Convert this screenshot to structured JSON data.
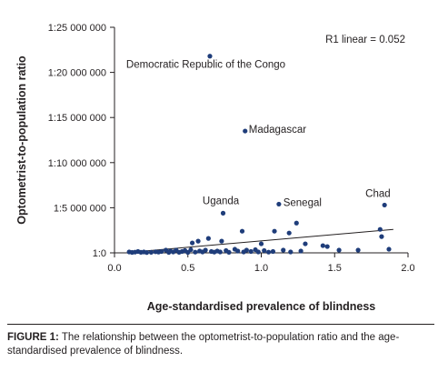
{
  "caption": {
    "label": "FIGURE 1:",
    "text": " The relationship between the optometrist-to-population ratio and the age-standardised prevalence of blindness."
  },
  "chart_data": {
    "type": "scatter",
    "xlabel": "Age-standardised prevalence of blindness",
    "ylabel": "Optometrist-to-population ratio",
    "xlim": [
      0.0,
      2.0
    ],
    "ylim": [
      0,
      25000000
    ],
    "x_ticks": [
      {
        "value": 0.0,
        "label": "0.0"
      },
      {
        "value": 0.5,
        "label": "0.5"
      },
      {
        "value": 1.0,
        "label": "1.0"
      },
      {
        "value": 1.5,
        "label": "1.5"
      },
      {
        "value": 2.0,
        "label": "2.0"
      }
    ],
    "y_ticks": [
      {
        "value": 0,
        "label": "1:0"
      },
      {
        "value": 5000000,
        "label": "1:5 000 000"
      },
      {
        "value": 10000000,
        "label": "1:10 000 000"
      },
      {
        "value": 15000000,
        "label": "1:15 000 000"
      },
      {
        "value": 20000000,
        "label": "1:20 000 000"
      },
      {
        "value": 25000000,
        "label": "1:25 000 000"
      }
    ],
    "r_label": "R1 linear = 0.052",
    "marker_color": "#1f3d7a",
    "trendline": {
      "x": [
        0.1,
        1.9
      ],
      "y": [
        50000,
        2600000
      ]
    },
    "points": [
      {
        "x": 0.65,
        "y": 21800000
      },
      {
        "x": 0.89,
        "y": 13500000
      },
      {
        "x": 0.74,
        "y": 4400000
      },
      {
        "x": 1.12,
        "y": 5400000
      },
      {
        "x": 1.84,
        "y": 5300000
      },
      {
        "x": 1.24,
        "y": 3300000
      },
      {
        "x": 0.87,
        "y": 2400000
      },
      {
        "x": 1.19,
        "y": 2200000
      },
      {
        "x": 1.09,
        "y": 2400000
      },
      {
        "x": 1.81,
        "y": 2600000
      },
      {
        "x": 1.82,
        "y": 1800000
      },
      {
        "x": 0.53,
        "y": 1100000
      },
      {
        "x": 0.64,
        "y": 1600000
      },
      {
        "x": 0.57,
        "y": 1300000
      },
      {
        "x": 0.73,
        "y": 1300000
      },
      {
        "x": 1.0,
        "y": 1000000
      },
      {
        "x": 1.3,
        "y": 1000000
      },
      {
        "x": 1.42,
        "y": 800000
      },
      {
        "x": 1.45,
        "y": 700000
      },
      {
        "x": 1.66,
        "y": 300000
      },
      {
        "x": 1.53,
        "y": 300000
      },
      {
        "x": 1.87,
        "y": 400000
      },
      {
        "x": 0.1,
        "y": 100000
      },
      {
        "x": 0.12,
        "y": 50000
      },
      {
        "x": 0.14,
        "y": 80000
      },
      {
        "x": 0.16,
        "y": 150000
      },
      {
        "x": 0.18,
        "y": 60000
      },
      {
        "x": 0.2,
        "y": 100000
      },
      {
        "x": 0.22,
        "y": 40000
      },
      {
        "x": 0.25,
        "y": 60000
      },
      {
        "x": 0.28,
        "y": 120000
      },
      {
        "x": 0.3,
        "y": 80000
      },
      {
        "x": 0.32,
        "y": 150000
      },
      {
        "x": 0.35,
        "y": 300000
      },
      {
        "x": 0.37,
        "y": 50000
      },
      {
        "x": 0.38,
        "y": 200000
      },
      {
        "x": 0.4,
        "y": 100000
      },
      {
        "x": 0.42,
        "y": 300000
      },
      {
        "x": 0.44,
        "y": 60000
      },
      {
        "x": 0.46,
        "y": 150000
      },
      {
        "x": 0.48,
        "y": 250000
      },
      {
        "x": 0.5,
        "y": 50000
      },
      {
        "x": 0.52,
        "y": 350000
      },
      {
        "x": 0.55,
        "y": 80000
      },
      {
        "x": 0.58,
        "y": 200000
      },
      {
        "x": 0.6,
        "y": 100000
      },
      {
        "x": 0.62,
        "y": 300000
      },
      {
        "x": 0.66,
        "y": 150000
      },
      {
        "x": 0.68,
        "y": 80000
      },
      {
        "x": 0.7,
        "y": 200000
      },
      {
        "x": 0.72,
        "y": 100000
      },
      {
        "x": 0.76,
        "y": 250000
      },
      {
        "x": 0.78,
        "y": 60000
      },
      {
        "x": 0.82,
        "y": 400000
      },
      {
        "x": 0.84,
        "y": 200000
      },
      {
        "x": 0.88,
        "y": 100000
      },
      {
        "x": 0.9,
        "y": 300000
      },
      {
        "x": 0.93,
        "y": 150000
      },
      {
        "x": 0.96,
        "y": 350000
      },
      {
        "x": 0.98,
        "y": 100000
      },
      {
        "x": 1.02,
        "y": 250000
      },
      {
        "x": 1.05,
        "y": 80000
      },
      {
        "x": 1.08,
        "y": 150000
      },
      {
        "x": 1.15,
        "y": 300000
      },
      {
        "x": 1.2,
        "y": 100000
      },
      {
        "x": 1.27,
        "y": 200000
      }
    ],
    "annotations": [
      {
        "text": "Democratic Republic of the Congo",
        "x": 0.08,
        "y": 20500000
      },
      {
        "text": "Madagascar",
        "x": 0.915,
        "y": 13300000
      },
      {
        "text": "Uganda",
        "x": 0.6,
        "y": 5400000
      },
      {
        "text": "Senegal",
        "x": 1.15,
        "y": 5200000
      },
      {
        "text": "Chad",
        "x": 1.71,
        "y": 6200000
      }
    ]
  }
}
